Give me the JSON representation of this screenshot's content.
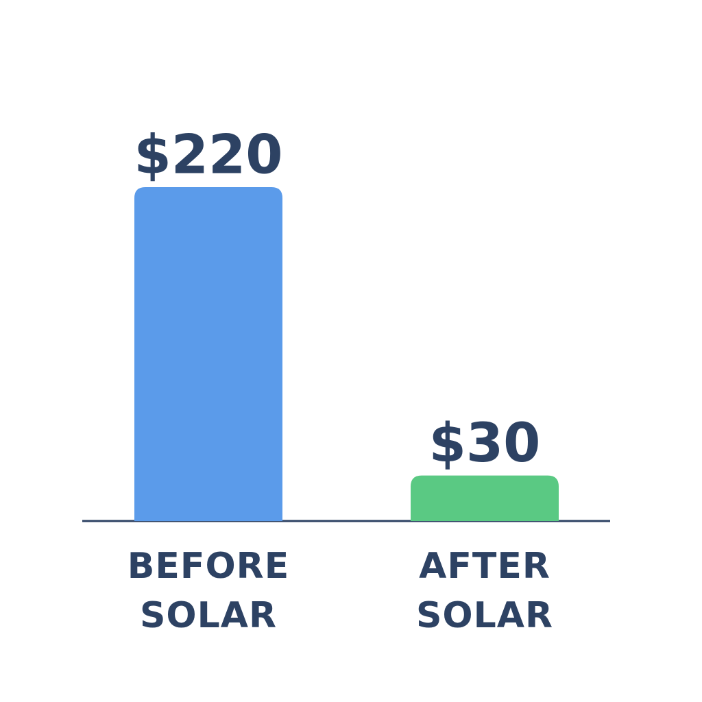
{
  "chart_data": {
    "type": "bar",
    "categories": [
      "BEFORE SOLAR",
      "AFTER SOLAR"
    ],
    "values": [
      220,
      30
    ],
    "value_labels": [
      "$220",
      "$30"
    ],
    "colors": [
      "#5b9bea",
      "#5ac983"
    ]
  }
}
